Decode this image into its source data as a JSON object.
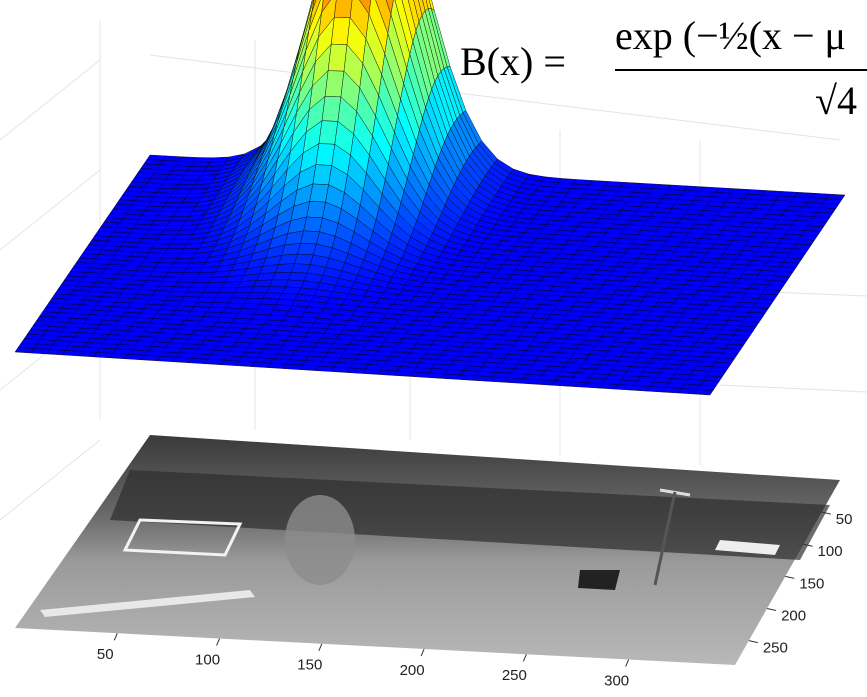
{
  "chart_data": {
    "type": "surface",
    "formula": {
      "lhs": "B(x) =",
      "numerator": "exp (−½(x − μ",
      "denominator": "√4"
    },
    "xlim": [
      0,
      352
    ],
    "xticks": [
      50,
      100,
      150,
      200,
      250,
      300
    ],
    "ylim": [
      0,
      288
    ],
    "yticks": [
      50,
      100,
      150,
      200,
      250
    ]
  }
}
